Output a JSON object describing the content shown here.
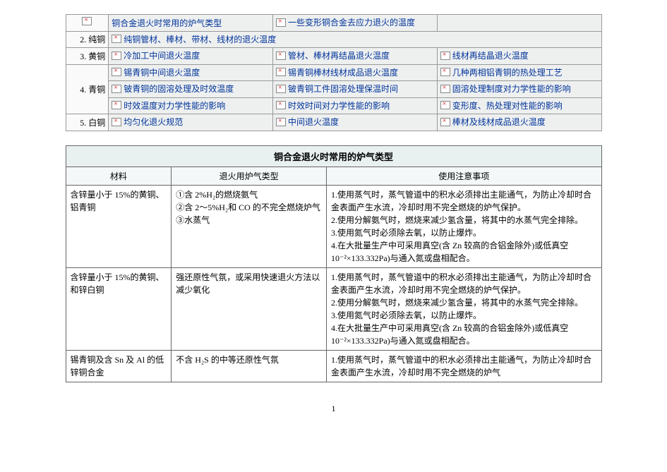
{
  "nav": {
    "rows": [
      {
        "label_img": true,
        "label": "",
        "cells": [
          {
            "text": "铜合金退火时常用的炉气类型"
          },
          {
            "text": "一些变形铜合金去应力退火的温度"
          },
          {
            "text": ""
          }
        ]
      },
      {
        "label": "2. 纯铜",
        "cells": [
          {
            "text": "纯铜管材、棒材、带材、线材的退火温度"
          },
          {
            "text": ""
          },
          {
            "text": ""
          }
        ]
      },
      {
        "label": "3. 黄铜",
        "cells": [
          {
            "text": "冷加工中间退火温度"
          },
          {
            "text": "管材、棒材再结晶退火温度"
          },
          {
            "text": "线材再结晶退火温度"
          }
        ]
      },
      {
        "label": "4. 青铜",
        "rowspan": 3,
        "cells_rows": [
          [
            {
              "text": "锡青铜中间退火温度"
            },
            {
              "text": "锡青铜棒材线材成品退火温度"
            },
            {
              "text": "几种两相铝青铜的热处理工艺"
            }
          ],
          [
            {
              "text": "铍青铜的固溶处理及时效温度"
            },
            {
              "text": "铍青铜工件固溶处理保温时间"
            },
            {
              "text": "固溶处理制度对力学性能的影响"
            }
          ],
          [
            {
              "text": "时效温度对力学性能的影响"
            },
            {
              "text": "时效时间对力学性能的影响"
            },
            {
              "text": "变形度、热处理对性能的影响"
            }
          ]
        ]
      },
      {
        "label": "5. 白铜",
        "cells": [
          {
            "text": "均匀化退火规范"
          },
          {
            "text": "中间退火温度"
          },
          {
            "text": "棒材及线材成品退火温度"
          }
        ]
      }
    ]
  },
  "content": {
    "title": "铜合金退火时常用的炉气类型",
    "headers": [
      "材料",
      "退火用炉气类型",
      "使用注意事项"
    ],
    "rows": [
      {
        "material": "含锌量小于 15%的黄铜、铝青铜",
        "type": "①含 2%H₂的燃烧氨气\n②含 2～5%H₂和 CO 的不完全燃烧炉气\n③水蒸气",
        "notes": "1.使用蒸气时，蒸气管道中的积水必须排出主能通气，为防止冷却时合金表面产生水流，冷却时用不完全燃烧的炉气保护。\n2.使用分解氨气时，燃烧来减少氢含量，将其中的水蒸气完全排除。\n3.使用氮气时必须除去氧，以防止爆炸。\n4.在大批量生产中可采用真空(含 Zn 较高的合铝金除外)或低真空 10⁻²×133.332Pa)与通入氮或盘相配合。"
      },
      {
        "material": "含锌量小于 15%的黄铜、和锌白铜",
        "type": "强还原性气氛，或采用快速退火方法以减少氧化",
        "notes": "1.使用蒸气时，蒸气管道中的积水必须排出主能通气，为防止冷却时合金表面产生水流，冷却时用不完全燃烧的炉气保护。\n2.使用分解氨气时，燃烧来减少氢含量，将其中的水蒸气完全排除。\n3.使用氮气时必须除去氧，以防止爆炸。\n4.在大批量生产中可采用真空(含 Zn 较高的合铝金除外)或低真空 10⁻²×133.332Pa)与通入氮或盘相配合。"
      },
      {
        "material": "锡青铜及含 Sn 及 Al 的低锌铜合金",
        "type": "不含 H₂S 的中等还原性气氛",
        "notes": "1.使用蒸气时，蒸气管道中的积水必须排出主能通气，为防止冷却时合金表面产生水流，冷却时用不完全燃烧的炉气"
      }
    ]
  },
  "page_number": "1"
}
